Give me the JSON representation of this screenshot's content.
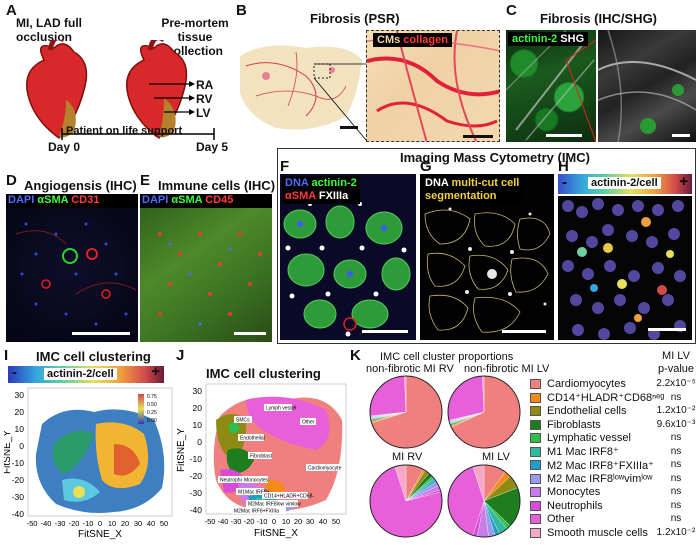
{
  "panels": {
    "A": {
      "letter": "A",
      "left_title": "MI, LAD full\nocclusion",
      "right_title": "Pre-mortem\ntissue\ncollection",
      "chambers": [
        "RA",
        "RV",
        "LV"
      ],
      "timeline_label": "Patient on life support",
      "day_start": "Day 0",
      "day_end": "Day 5"
    },
    "B": {
      "letter": "B",
      "title": "Fibrosis (PSR)",
      "inset_label_1": "CMs",
      "inset_label_2": "collagen"
    },
    "C": {
      "letter": "C",
      "title": "Fibrosis (IHC/SHG)",
      "label_1": "actinin-2",
      "label_2": "SHG"
    },
    "D": {
      "letter": "D",
      "title": "Angiogensis (IHC)",
      "labels": [
        "DAPI",
        "αSMA",
        "CD31"
      ]
    },
    "E": {
      "letter": "E",
      "title": "Immune cells (IHC)",
      "labels": [
        "DAPI",
        "αSMA",
        "CD45"
      ]
    },
    "IMC": {
      "title": "Imaging Mass Cytometry (IMC)"
    },
    "F": {
      "letter": "F",
      "labels_row1": [
        "DNA",
        "actinin-2"
      ],
      "labels_row2": [
        "αSMA",
        "FXIIIa"
      ]
    },
    "G": {
      "letter": "G",
      "label_1": "DNA",
      "label_2": "multi-cut cell",
      "label_3": "segmentation"
    },
    "H": {
      "letter": "H",
      "bar_label": "actinin-2/cell",
      "minus": "-",
      "plus": "+"
    },
    "I": {
      "letter": "I",
      "title": "IMC cell clustering",
      "bar_label": "actinin-2/cell",
      "minus": "-",
      "plus": "+",
      "colorbar_ticks": [
        "0.75",
        "0.50",
        "0.25",
        "0.00"
      ],
      "xlabel": "FitSNE_X",
      "ylabel": "FitSNE_Y",
      "xticks": [
        "-50",
        "-40",
        "-30",
        "-20",
        "-10",
        "0",
        "10",
        "20",
        "30",
        "40",
        "50"
      ],
      "yticks": [
        "30",
        "20",
        "10",
        "0",
        "-10",
        "-20",
        "-30",
        "-40"
      ]
    },
    "J": {
      "letter": "J",
      "title": "IMC cell clustering",
      "xlabel": "FitSNE_X",
      "ylabel": "FitSNE_Y",
      "xticks": [
        "-50",
        "-40",
        "-30",
        "-20",
        "-10",
        "0",
        "10",
        "20",
        "30",
        "40",
        "50"
      ],
      "yticks": [
        "30",
        "20",
        "10",
        "0",
        "-10",
        "-20",
        "-30",
        "-40"
      ],
      "cluster_labels": [
        "SMCs",
        "Lymph vessel",
        "Other",
        "Endothelial",
        "Fibroblast",
        "Cardiomyocyte",
        "Neutrophils",
        "Monocytes",
        "M1Mac IRF8+",
        "CD14+HLADR+CD68-",
        "M2Mac IRF8low vimlow",
        "M2Mac IRF8+FXIIIa"
      ]
    },
    "K": {
      "letter": "K",
      "title": "IMC cell cluster proportions",
      "pie_titles": [
        "non-fibrotic MI RV",
        "non-fibrotic MI LV",
        "MI RV",
        "MI LV"
      ],
      "pvalue_header_1": "MI LV",
      "pvalue_header_2": "p-value"
    }
  },
  "chart_data": {
    "type": "pie",
    "title": "IMC cell cluster proportions",
    "categories": [
      "Cardiomyocytes",
      "CD14+HLADR+CD68neg",
      "Endothelial cells",
      "Fibroblasts",
      "Lymphatic vessel",
      "M1 Mac IRF8+",
      "M2 Mac IRF8+FXIIIa+",
      "M2 Mac IRF8lowvimlow",
      "Monocytes",
      "Neutrophils",
      "Other",
      "Smooth muscle cells"
    ],
    "colors": [
      "#f08080",
      "#f28a1c",
      "#8f8a14",
      "#1e7d1e",
      "#2fbf4a",
      "#33b8a0",
      "#1f9fc8",
      "#9b9bec",
      "#c77ce8",
      "#d94bd6",
      "#e75fd9",
      "#f6a8c8"
    ],
    "series": [
      {
        "name": "non-fibrotic MI RV",
        "values": [
          70,
          0.5,
          0.5,
          0.5,
          0.3,
          0.3,
          0.3,
          0.3,
          0.3,
          0.3,
          26,
          0.7
        ]
      },
      {
        "name": "non-fibrotic MI LV",
        "values": [
          68,
          0.5,
          0.5,
          0.5,
          0.3,
          0.3,
          0.3,
          0.3,
          0.3,
          0.3,
          28,
          0.7
        ]
      },
      {
        "name": "MI RV",
        "values": [
          8,
          1,
          2,
          2,
          1,
          1,
          1,
          2,
          2,
          1,
          74,
          5
        ]
      },
      {
        "name": "MI LV",
        "values": [
          10,
          3,
          6,
          18,
          2,
          4,
          2,
          3,
          5,
          2,
          40,
          5
        ]
      }
    ],
    "legend_labels": [
      "Cardiomyocytes",
      "CD14⁺HLADR⁺CD68ⁿᵉᵍ",
      "Endothelial cells",
      "Fibroblasts",
      "Lymphatic vessel",
      "M1 Mac IRF8⁺",
      "M2 Mac IRF8⁺FXIIIa⁺",
      "M2 Mac IRF8ˡᵒʷvimˡᵒʷ",
      "Monocytes",
      "Neutrophils",
      "Other",
      "Smooth muscle cells"
    ],
    "pvalues": [
      "2.2x10⁻⁵",
      "ns",
      "1.2x10⁻²",
      "9.6x10⁻³",
      "ns",
      "ns",
      "ns",
      "ns",
      "ns",
      "ns",
      "ns",
      "1.2x10⁻²"
    ]
  }
}
